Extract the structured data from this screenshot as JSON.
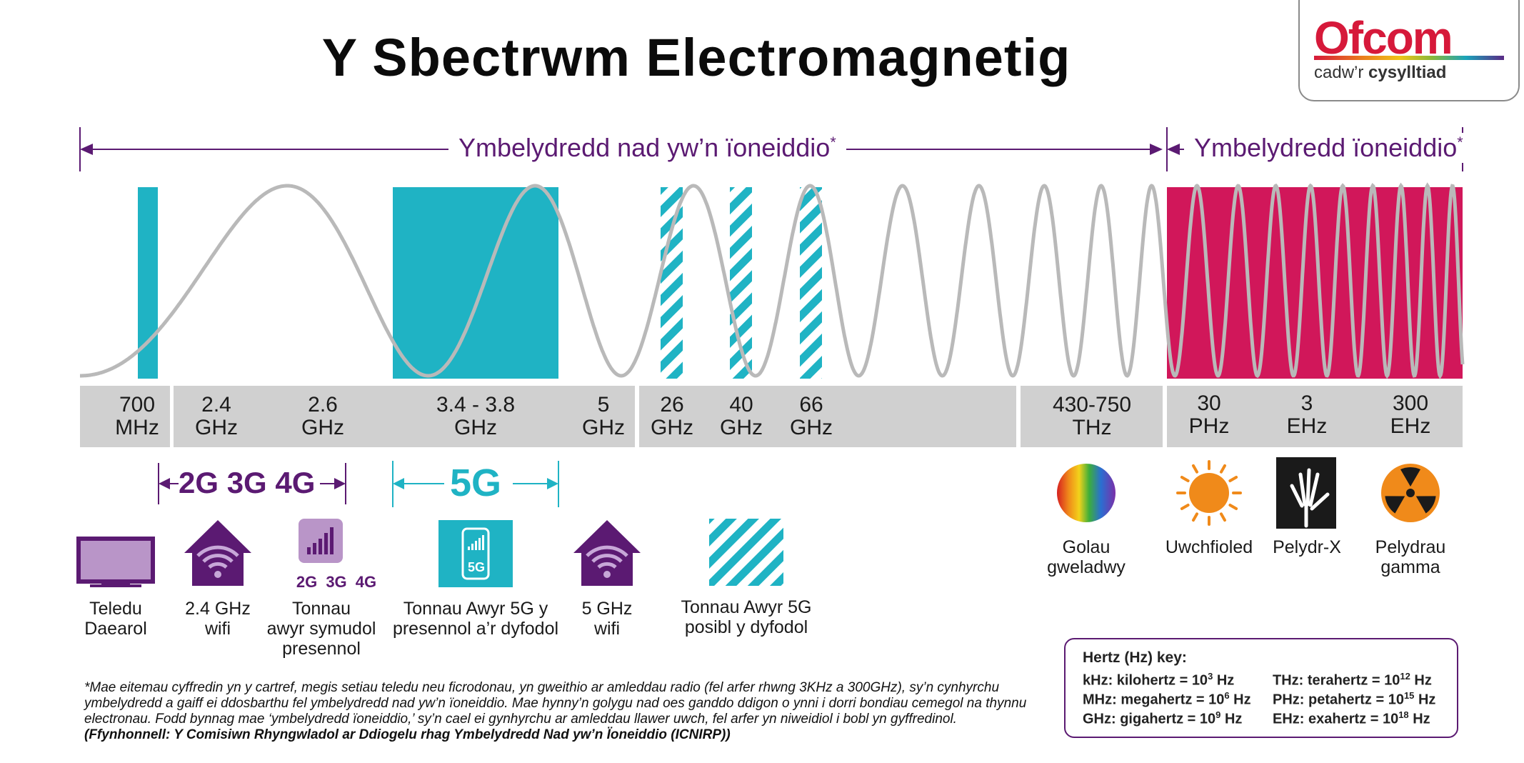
{
  "title": "Y Sbectrwm Electromagnetig",
  "logo": {
    "word": "Ofcom",
    "tagline_plain": "cadw’r ",
    "tagline_bold": "cysylltiad"
  },
  "ranges": {
    "non_ionising": "Ymbelydredd nad yw’n ïoneiddio",
    "ionising": "Ymbelydredd ïoneiddio",
    "asterisk": "*"
  },
  "frequencies": [
    {
      "line1": "700",
      "line2": "MHz"
    },
    {
      "line1": "2.4",
      "line2": "GHz"
    },
    {
      "line1": "2.6",
      "line2": "GHz"
    },
    {
      "line1": "3.4 - 3.8",
      "line2": "GHz"
    },
    {
      "line1": "5",
      "line2": "GHz"
    },
    {
      "line1": "26",
      "line2": "GHz"
    },
    {
      "line1": "40",
      "line2": "GHz"
    },
    {
      "line1": "66",
      "line2": "GHz"
    },
    {
      "line1": "430-750",
      "line2": "THz"
    },
    {
      "line1": "30",
      "line2": "PHz"
    },
    {
      "line1": "3",
      "line2": "EHz"
    },
    {
      "line1": "300",
      "line2": "EHz"
    }
  ],
  "bands": {
    "generations": "2G 3G 4G",
    "fiveg": "5G"
  },
  "items": {
    "tv": {
      "line1": "Teledu",
      "line2": "Daearol"
    },
    "wifi24": {
      "line1": "2.4 GHz",
      "line2": "wifi"
    },
    "mobile": {
      "badge": "2G 3G 4G",
      "line1": "Tonnau",
      "line2": "awyr symudol",
      "line3": "presennol"
    },
    "fiveg_now": {
      "phone_badge": "5G",
      "line1": "Tonnau Awyr 5G y",
      "line2": "presennol a’r dyfodol"
    },
    "wifi5": {
      "line1": "5 GHz",
      "line2": "wifi"
    },
    "fiveg_future": {
      "line1": "Tonnau Awyr 5G",
      "line2": "posibl y dyfodol"
    },
    "visible": {
      "line1": "Golau",
      "line2": "gweladwy"
    },
    "uv": {
      "line1": "Uwchfioled"
    },
    "xray": {
      "line1": "Pelydr-X"
    },
    "gamma": {
      "line1": "Pelydrau",
      "line2": "gamma"
    }
  },
  "footnote": {
    "body": "*Mae eitemau cyffredin yn y cartref, megis setiau teledu neu ficrodonau, yn gweithio ar amleddau radio (fel arfer rhwng 3KHz a 300GHz), sy’n cynhyrchu ymbelydredd a gaiff ei ddosbarthu fel ymbelydredd nad yw’n ïoneiddio. Mae hynny’n golygu nad oes ganddo ddigon o ynni i dorri bondiau cemegol na thynnu electronau. Fodd bynnag mae ‘ymbelydredd ïoneiddio,’ sy’n cael ei gynhyrchu ar amleddau llawer uwch, fel arfer yn niweidiol i bobl yn gyffredinol.",
    "source": "(Ffynhonnell: Y Comisiwn Rhyngwladol ar Ddiogelu rhag Ymbelydredd Nad yw’n Ïoneiddio (ICNIRP))"
  },
  "key": {
    "title": "Hertz (Hz) key:",
    "entries": [
      {
        "text": "kHz: kilohertz = 10",
        "exp": "3",
        "unit": " Hz"
      },
      {
        "text": "MHz: megahertz = 10",
        "exp": "6",
        "unit": " Hz"
      },
      {
        "text": "GHz: gigahertz = 10",
        "exp": "9",
        "unit": " Hz"
      },
      {
        "text": "THz: terahertz = 10",
        "exp": "12",
        "unit": " Hz"
      },
      {
        "text": "PHz: petahertz = 10",
        "exp": "15",
        "unit": " Hz"
      },
      {
        "text": "EHz: exahertz = 10",
        "exp": "18",
        "unit": " Hz"
      }
    ]
  },
  "colors": {
    "purple": "#5b1a72",
    "cyan": "#1fb3c4",
    "magenta": "#d1175a",
    "grey_bar": "#d0d0d0",
    "wave": "#b5b5b5"
  }
}
